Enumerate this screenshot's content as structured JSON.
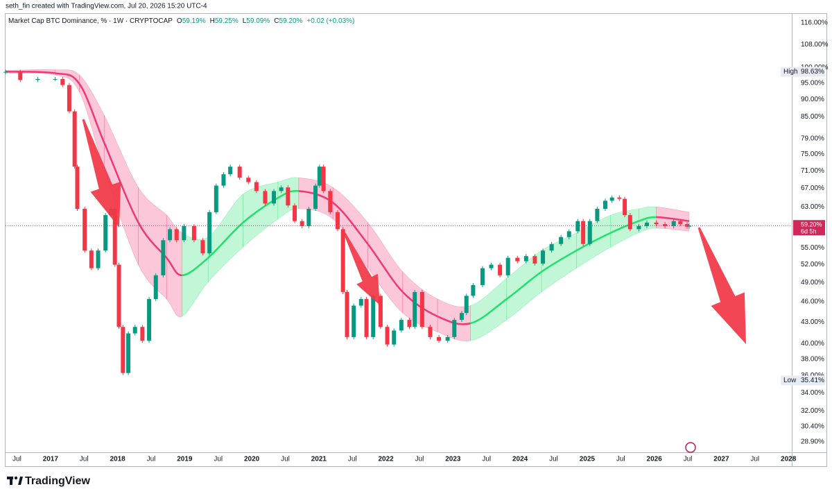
{
  "header": "seth_fin created with TradingView.com, Jul 20, 2026 15:20 UTC-4",
  "chart_data": {
    "type": "candlestick",
    "x": [
      2016.33,
      2016.55,
      2016.81,
      2017.07,
      2017.18,
      2017.28,
      2017.36,
      2017.4,
      2017.51,
      2017.61,
      2017.71,
      2017.82,
      2017.9,
      2017.96,
      2018.02,
      2018.08,
      2018.16,
      2018.26,
      2018.37,
      2018.47,
      2018.57,
      2018.68,
      2018.78,
      2018.88,
      2018.99,
      2019.14,
      2019.27,
      2019.37,
      2019.47,
      2019.58,
      2019.68,
      2019.82,
      2019.95,
      2020.07,
      2020.2,
      2020.33,
      2020.44,
      2020.54,
      2020.64,
      2020.75,
      2020.85,
      2020.95,
      2021.01,
      2021.07,
      2021.17,
      2021.28,
      2021.36,
      2021.42,
      2021.52,
      2021.63,
      2021.71,
      2021.81,
      2021.92,
      2022.02,
      2022.12,
      2022.23,
      2022.35,
      2022.43,
      2022.54,
      2022.66,
      2022.79,
      2022.92,
      2023.02,
      2023.13,
      2023.2,
      2023.3,
      2023.44,
      2023.57,
      2023.7,
      2023.82,
      2023.96,
      2024.09,
      2024.22,
      2024.34,
      2024.47,
      2024.61,
      2024.73,
      2024.86,
      2024.94,
      2025.04,
      2025.15,
      2025.27,
      2025.37,
      2025.48,
      2025.56,
      2025.64,
      2025.77,
      2025.89,
      2026.03,
      2026.16,
      2026.29,
      2026.39,
      2026.49,
      2026.52
    ],
    "series": [
      {
        "name": "Market Cap BTC Dominance, % · 1W · CRYPTOCAP",
        "up_color": "#089981",
        "down_color": "#f23645",
        "values": [
          98.6,
          96.0,
          96.3,
          96.3,
          94.4,
          86.5,
          72.0,
          62.6,
          54.5,
          51.4,
          54.5,
          61.3,
          62.6,
          52.0,
          42.3,
          36.3,
          41.4,
          42.3,
          40.4,
          46.4,
          50.2,
          56.4,
          58.5,
          56.4,
          59.1,
          56.4,
          54.0,
          61.9,
          67.6,
          70.2,
          72.0,
          69.4,
          68.4,
          66.4,
          63.7,
          66.4,
          67.2,
          63.3,
          60.1,
          59.1,
          62.6,
          67.6,
          72.0,
          66.4,
          61.9,
          58.5,
          47.5,
          40.9,
          45.4,
          46.4,
          40.9,
          46.9,
          42.3,
          39.9,
          41.8,
          43.3,
          42.3,
          47.5,
          42.3,
          40.9,
          40.4,
          40.9,
          43.3,
          44.3,
          46.9,
          48.6,
          51.4,
          52.0,
          50.2,
          53.2,
          52.6,
          53.5,
          52.2,
          54.5,
          55.7,
          57.0,
          58.1,
          60.1,
          55.7,
          60.1,
          62.6,
          64.3,
          65.0,
          64.7,
          61.3,
          58.5,
          59.1,
          59.8,
          59.5,
          59.1,
          60.1,
          59.5,
          59.0,
          59.2
        ]
      }
    ],
    "ohlc": [
      {
        "key": "O",
        "text": "59.19%"
      },
      {
        "key": "H",
        "text": "59.25%"
      },
      {
        "key": "L",
        "text": "59.09%"
      },
      {
        "key": "C",
        "text": "59.20%"
      }
    ],
    "change": "+0.02 (+0.03%)",
    "band": {
      "x": [
        2016.33,
        2017.07,
        2017.43,
        2017.8,
        2018.31,
        2018.73,
        2018.96,
        2019.35,
        2019.87,
        2020.39,
        2020.7,
        2021.21,
        2021.73,
        2022.25,
        2022.77,
        2023.26,
        2023.8,
        2024.32,
        2024.84,
        2025.35,
        2025.77,
        2026.03,
        2026.52
      ],
      "center": [
        98.7,
        98.2,
        94.8,
        78.0,
        59.8,
        53.2,
        50.2,
        53.2,
        59.8,
        64.9,
        66.4,
        63.9,
        55.7,
        47.5,
        43.8,
        42.8,
        46.4,
        50.8,
        54.5,
        57.8,
        60.1,
        60.9,
        60.1
      ],
      "upper": [
        99.1,
        99.3,
        97.6,
        85.4,
        67.2,
        61.3,
        57.8,
        57.0,
        65.7,
        68.4,
        69.4,
        67.2,
        59.8,
        50.8,
        46.4,
        45.4,
        49.7,
        54.5,
        57.8,
        61.3,
        62.6,
        63.0,
        61.9
      ],
      "lower": [
        98.2,
        97.6,
        92.3,
        71.4,
        52.0,
        46.4,
        43.8,
        49.1,
        55.1,
        60.5,
        62.6,
        60.5,
        51.4,
        44.3,
        41.6,
        40.4,
        43.3,
        47.5,
        51.4,
        55.1,
        57.8,
        58.7,
        58.1
      ],
      "up_color": "#22e06b",
      "down_color": "#f23675"
    },
    "log_scale": true,
    "xlim": [
      2016.33,
      2028.05
    ],
    "xticks": [
      {
        "value": 2016.5,
        "label": "Jul"
      },
      2017,
      {
        "value": 2017.5,
        "label": "Jul"
      },
      2018,
      {
        "value": 2018.5,
        "label": "Jul"
      },
      2019,
      {
        "value": 2019.5,
        "label": "Jul"
      },
      2020,
      {
        "value": 2020.5,
        "label": "Jul"
      },
      2021,
      {
        "value": 2021.5,
        "label": "Jul"
      },
      2022,
      {
        "value": 2022.5,
        "label": "Jul"
      },
      2023,
      {
        "value": 2023.5,
        "label": "Jul"
      },
      2024,
      {
        "value": 2024.5,
        "label": "Jul"
      },
      2025,
      {
        "value": 2025.5,
        "label": "Jul"
      },
      2026,
      {
        "value": 2026.5,
        "label": "Jul"
      },
      2027,
      {
        "value": 2027.5,
        "label": "Jul"
      },
      2028
    ],
    "ylim": [
      27.9,
      119
    ],
    "yticks": [
      {
        "value": 116,
        "label": "116.00%"
      },
      {
        "value": 108,
        "label": "108.00%"
      },
      {
        "value": 100,
        "label": "100.00%"
      },
      {
        "value": 95,
        "label": "95.00%"
      },
      {
        "value": 90,
        "label": "90.00%"
      },
      {
        "value": 85,
        "label": "85.00%"
      },
      {
        "value": 79,
        "label": "79.00%"
      },
      {
        "value": 75,
        "label": "75.00%"
      },
      {
        "value": 71,
        "label": "71.00%"
      },
      {
        "value": 67,
        "label": "67.00%"
      },
      {
        "value": 63,
        "label": "63.00%"
      },
      {
        "value": 55,
        "label": "55.00%"
      },
      {
        "value": 52,
        "label": "52.00%"
      },
      {
        "value": 49,
        "label": "49.00%"
      },
      {
        "value": 46,
        "label": "46.00%"
      },
      {
        "value": 43,
        "label": "43.00%"
      },
      {
        "value": 40,
        "label": "40.00%"
      },
      {
        "value": 38,
        "label": "38.00%"
      },
      {
        "value": 36,
        "label": "36.00%"
      },
      {
        "value": 34,
        "label": "34.00%"
      },
      {
        "value": 32,
        "label": "32.00%"
      },
      {
        "value": 30.4,
        "label": "30.40%"
      },
      {
        "value": 28.9,
        "label": "28.90%"
      }
    ],
    "high": {
      "label": "High",
      "value": 98.63,
      "value_label": "98.63%"
    },
    "low": {
      "label": "Low",
      "value": 35.41,
      "value_label": "35.41%"
    },
    "last": {
      "value": 59.2,
      "value_label": "59.20%",
      "countdown": "6d 5h",
      "color": "#d1285a"
    }
  },
  "footer": {
    "brand": "TradingView"
  }
}
